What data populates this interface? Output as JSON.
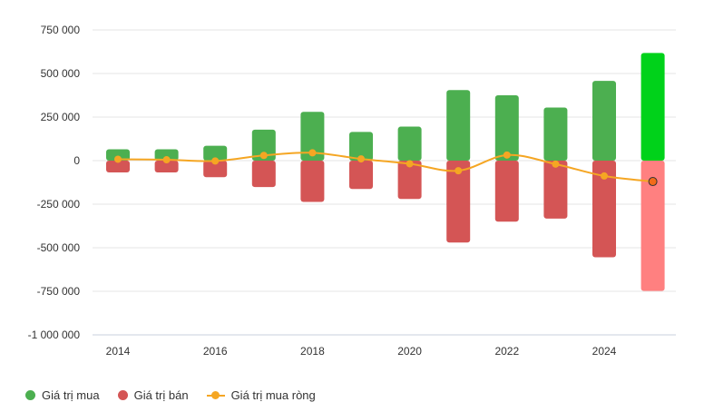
{
  "chart_data": {
    "type": "bar",
    "title": "",
    "xlabel": "",
    "ylabel": "",
    "ylim": [
      -1000000,
      750000
    ],
    "yticks": [
      -1000000,
      -750000,
      -500000,
      -250000,
      0,
      250000,
      500000,
      750000
    ],
    "ytick_labels": [
      "-1 000 000",
      "-750 000",
      "-500 000",
      "-250 000",
      "0",
      "250 000",
      "500 000",
      "750 000"
    ],
    "years": [
      2014,
      2015,
      2016,
      2017,
      2018,
      2019,
      2020,
      2021,
      2022,
      2023,
      2024,
      2025
    ],
    "xtick_labels": [
      "2014",
      "2016",
      "2018",
      "2020",
      "2022",
      "2024"
    ],
    "xticks": [
      2014,
      2016,
      2018,
      2020,
      2022,
      2024
    ],
    "series": [
      {
        "name": "Giá trị mua",
        "kind": "bar",
        "values": [
          65000,
          65000,
          85000,
          178000,
          280000,
          165000,
          195000,
          405000,
          375000,
          305000,
          458000,
          618000
        ]
      },
      {
        "name": "Giá trị bán",
        "kind": "bar",
        "values": [
          -68000,
          -68000,
          -95000,
          -152000,
          -237000,
          -163000,
          -220000,
          -470000,
          -350000,
          -333000,
          -555000,
          -748000
        ]
      },
      {
        "name": "Giá trị mua ròng",
        "kind": "line",
        "values": [
          8000,
          5000,
          -2000,
          30000,
          45000,
          10000,
          -18000,
          -58000,
          32000,
          -20000,
          -88000,
          -120000
        ]
      }
    ],
    "colors": {
      "buy": "#4caf50",
      "sell": "#d45555",
      "buy_highlight": "#00d21a",
      "sell_highlight": "#ff8080",
      "net": "#f5a623",
      "net_highlight": "#f26b1a"
    },
    "legend_position": "bottom-left",
    "grid": true
  },
  "legend": {
    "buy": "Giá trị mua",
    "sell": "Giá trị bán",
    "net": "Giá trị mua ròng"
  }
}
